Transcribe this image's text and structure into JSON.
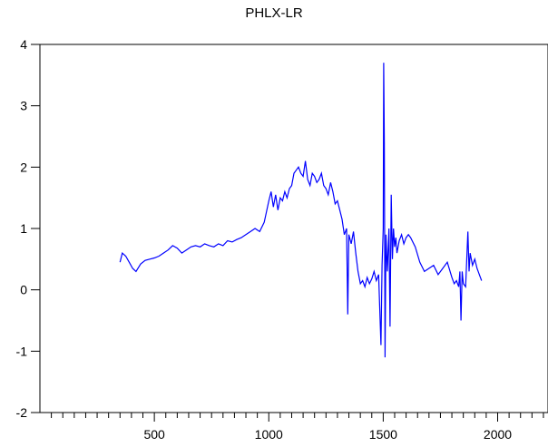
{
  "chart_data": {
    "type": "line",
    "title": "PHLX-LR",
    "xlabel": "",
    "ylabel": "",
    "xlim": [
      0,
      2220
    ],
    "ylim": [
      -2,
      4
    ],
    "x_ticks": [
      500,
      1000,
      1500,
      2000
    ],
    "y_ticks": [
      -2,
      -1,
      0,
      1,
      2,
      3,
      4
    ],
    "x_minor_step": 50,
    "grid": false,
    "legend": "none",
    "line_color": "#0000ff",
    "series": [
      {
        "x": [
          350,
          360,
          375,
          390,
          405,
          420,
          440,
          460,
          480,
          500,
          520,
          540,
          560,
          580,
          600,
          620,
          640,
          660,
          680,
          700,
          720,
          740,
          760,
          780,
          800,
          820,
          840,
          860,
          880,
          900,
          920,
          940,
          960,
          980,
          1000,
          1010,
          1020,
          1030,
          1040,
          1050,
          1060,
          1070,
          1080,
          1090,
          1100,
          1110,
          1120,
          1130,
          1140,
          1150,
          1160,
          1170,
          1180,
          1190,
          1200,
          1210,
          1220,
          1230,
          1240,
          1250,
          1260,
          1270,
          1280,
          1290,
          1300,
          1310,
          1320,
          1330,
          1340,
          1345,
          1350,
          1360,
          1370,
          1380,
          1390,
          1400,
          1410,
          1420,
          1430,
          1440,
          1450,
          1460,
          1470,
          1480,
          1490,
          1495,
          1500,
          1502,
          1505,
          1508,
          1512,
          1518,
          1525,
          1530,
          1535,
          1540,
          1545,
          1550,
          1555,
          1560,
          1570,
          1580,
          1590,
          1600,
          1610,
          1620,
          1640,
          1660,
          1680,
          1700,
          1720,
          1740,
          1760,
          1780,
          1800,
          1810,
          1820,
          1830,
          1835,
          1840,
          1845,
          1850,
          1860,
          1870,
          1875,
          1880,
          1890,
          1900,
          1910,
          1920,
          1930
        ],
        "y": [
          0.45,
          0.6,
          0.55,
          0.45,
          0.35,
          0.3,
          0.42,
          0.48,
          0.5,
          0.52,
          0.55,
          0.6,
          0.65,
          0.72,
          0.68,
          0.6,
          0.65,
          0.7,
          0.72,
          0.7,
          0.75,
          0.72,
          0.7,
          0.75,
          0.72,
          0.8,
          0.78,
          0.82,
          0.85,
          0.9,
          0.95,
          1.0,
          0.95,
          1.1,
          1.45,
          1.6,
          1.35,
          1.55,
          1.3,
          1.5,
          1.45,
          1.6,
          1.5,
          1.65,
          1.7,
          1.9,
          1.95,
          2.0,
          1.9,
          1.85,
          2.1,
          1.8,
          1.7,
          1.9,
          1.85,
          1.75,
          1.8,
          1.9,
          1.7,
          1.65,
          1.55,
          1.75,
          1.6,
          1.4,
          1.45,
          1.3,
          1.15,
          0.9,
          1.0,
          -0.4,
          0.9,
          0.75,
          0.95,
          0.6,
          0.3,
          0.1,
          0.15,
          0.05,
          0.2,
          0.1,
          0.18,
          0.3,
          0.15,
          0.25,
          -0.9,
          0.4,
          1.0,
          3.7,
          2.4,
          -1.1,
          0.9,
          0.3,
          1.0,
          -0.6,
          1.55,
          0.5,
          1.0,
          0.7,
          0.85,
          0.6,
          0.8,
          0.9,
          0.75,
          0.85,
          0.9,
          0.85,
          0.7,
          0.45,
          0.3,
          0.35,
          0.4,
          0.25,
          0.35,
          0.45,
          0.2,
          0.1,
          0.15,
          0.05,
          0.3,
          -0.5,
          0.3,
          0.1,
          0.05,
          0.95,
          0.3,
          0.6,
          0.4,
          0.5,
          0.35,
          0.25,
          0.15
        ]
      }
    ]
  }
}
